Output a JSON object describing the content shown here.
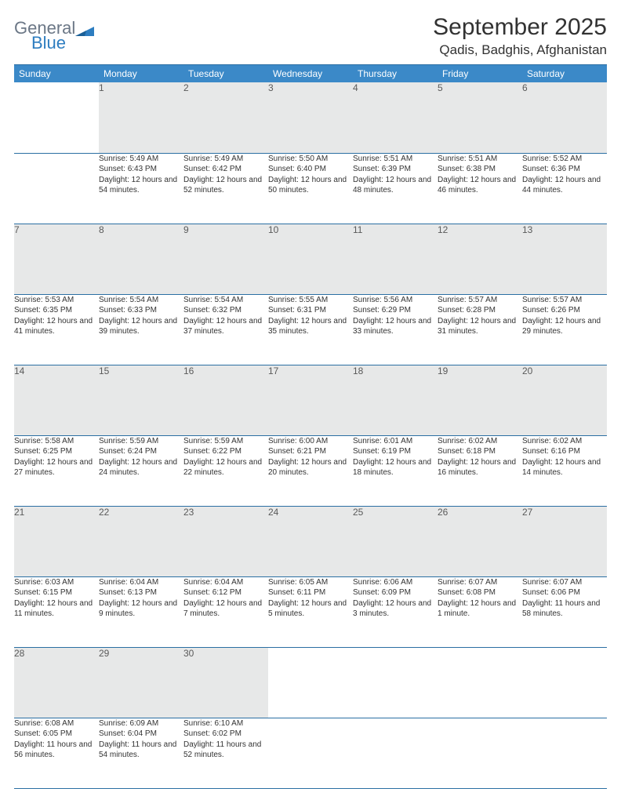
{
  "brand": {
    "general": "General",
    "blue": "Blue"
  },
  "title": "September 2025",
  "location": "Qadis, Badghis, Afghanistan",
  "day_headers": [
    "Sunday",
    "Monday",
    "Tuesday",
    "Wednesday",
    "Thursday",
    "Friday",
    "Saturday"
  ],
  "colors": {
    "header_bg": "#3b89c8",
    "header_text": "#ffffff",
    "daynum_bg": "#e7e8e8",
    "daynum_text": "#5a5a5a",
    "rule": "#2b6fa3",
    "body_text": "#333333",
    "logo_gray": "#6b7786",
    "logo_blue": "#2d7dc0"
  },
  "typography": {
    "title_fontsize": 30,
    "location_fontsize": 17,
    "header_fontsize": 12,
    "daynum_fontsize": 12,
    "cell_fontsize": 10
  },
  "weeks": [
    [
      null,
      {
        "d": "1",
        "sr": "5:49 AM",
        "ss": "6:43 PM",
        "dl": "12 hours and 54 minutes."
      },
      {
        "d": "2",
        "sr": "5:49 AM",
        "ss": "6:42 PM",
        "dl": "12 hours and 52 minutes."
      },
      {
        "d": "3",
        "sr": "5:50 AM",
        "ss": "6:40 PM",
        "dl": "12 hours and 50 minutes."
      },
      {
        "d": "4",
        "sr": "5:51 AM",
        "ss": "6:39 PM",
        "dl": "12 hours and 48 minutes."
      },
      {
        "d": "5",
        "sr": "5:51 AM",
        "ss": "6:38 PM",
        "dl": "12 hours and 46 minutes."
      },
      {
        "d": "6",
        "sr": "5:52 AM",
        "ss": "6:36 PM",
        "dl": "12 hours and 44 minutes."
      }
    ],
    [
      {
        "d": "7",
        "sr": "5:53 AM",
        "ss": "6:35 PM",
        "dl": "12 hours and 41 minutes."
      },
      {
        "d": "8",
        "sr": "5:54 AM",
        "ss": "6:33 PM",
        "dl": "12 hours and 39 minutes."
      },
      {
        "d": "9",
        "sr": "5:54 AM",
        "ss": "6:32 PM",
        "dl": "12 hours and 37 minutes."
      },
      {
        "d": "10",
        "sr": "5:55 AM",
        "ss": "6:31 PM",
        "dl": "12 hours and 35 minutes."
      },
      {
        "d": "11",
        "sr": "5:56 AM",
        "ss": "6:29 PM",
        "dl": "12 hours and 33 minutes."
      },
      {
        "d": "12",
        "sr": "5:57 AM",
        "ss": "6:28 PM",
        "dl": "12 hours and 31 minutes."
      },
      {
        "d": "13",
        "sr": "5:57 AM",
        "ss": "6:26 PM",
        "dl": "12 hours and 29 minutes."
      }
    ],
    [
      {
        "d": "14",
        "sr": "5:58 AM",
        "ss": "6:25 PM",
        "dl": "12 hours and 27 minutes."
      },
      {
        "d": "15",
        "sr": "5:59 AM",
        "ss": "6:24 PM",
        "dl": "12 hours and 24 minutes."
      },
      {
        "d": "16",
        "sr": "5:59 AM",
        "ss": "6:22 PM",
        "dl": "12 hours and 22 minutes."
      },
      {
        "d": "17",
        "sr": "6:00 AM",
        "ss": "6:21 PM",
        "dl": "12 hours and 20 minutes."
      },
      {
        "d": "18",
        "sr": "6:01 AM",
        "ss": "6:19 PM",
        "dl": "12 hours and 18 minutes."
      },
      {
        "d": "19",
        "sr": "6:02 AM",
        "ss": "6:18 PM",
        "dl": "12 hours and 16 minutes."
      },
      {
        "d": "20",
        "sr": "6:02 AM",
        "ss": "6:16 PM",
        "dl": "12 hours and 14 minutes."
      }
    ],
    [
      {
        "d": "21",
        "sr": "6:03 AM",
        "ss": "6:15 PM",
        "dl": "12 hours and 11 minutes."
      },
      {
        "d": "22",
        "sr": "6:04 AM",
        "ss": "6:13 PM",
        "dl": "12 hours and 9 minutes."
      },
      {
        "d": "23",
        "sr": "6:04 AM",
        "ss": "6:12 PM",
        "dl": "12 hours and 7 minutes."
      },
      {
        "d": "24",
        "sr": "6:05 AM",
        "ss": "6:11 PM",
        "dl": "12 hours and 5 minutes."
      },
      {
        "d": "25",
        "sr": "6:06 AM",
        "ss": "6:09 PM",
        "dl": "12 hours and 3 minutes."
      },
      {
        "d": "26",
        "sr": "6:07 AM",
        "ss": "6:08 PM",
        "dl": "12 hours and 1 minute."
      },
      {
        "d": "27",
        "sr": "6:07 AM",
        "ss": "6:06 PM",
        "dl": "11 hours and 58 minutes."
      }
    ],
    [
      {
        "d": "28",
        "sr": "6:08 AM",
        "ss": "6:05 PM",
        "dl": "11 hours and 56 minutes."
      },
      {
        "d": "29",
        "sr": "6:09 AM",
        "ss": "6:04 PM",
        "dl": "11 hours and 54 minutes."
      },
      {
        "d": "30",
        "sr": "6:10 AM",
        "ss": "6:02 PM",
        "dl": "11 hours and 52 minutes."
      },
      null,
      null,
      null,
      null
    ]
  ],
  "labels": {
    "sunrise": "Sunrise:",
    "sunset": "Sunset:",
    "daylight": "Daylight:"
  }
}
